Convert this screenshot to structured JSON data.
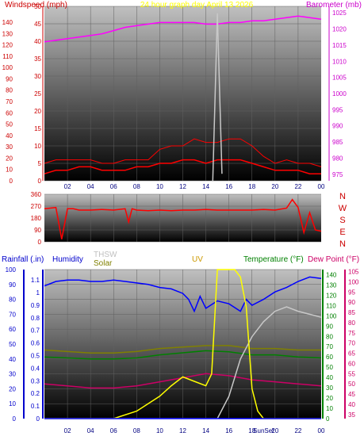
{
  "colors": {
    "wind_speed": "#ff0000",
    "gust": "#ff0000",
    "barometer": "#ff00ff",
    "wind_dir": "#ff0000",
    "rain": "#0000ff",
    "humidity": "#0000ff",
    "thsw": "#c8c8c8",
    "solar": "#808000",
    "uv": "#ffff00",
    "temperature": "#008000",
    "dew_point": "#cc0066",
    "title": "#ffff00",
    "axis_left_speed": "#cc0000",
    "axis_right_baro": "#cc00cc",
    "axis_rain": "#0000cc",
    "axis_uv": "#ffcc00",
    "axis_temp": "#008000",
    "axis_dew": "#cc0066"
  },
  "chart_data": [
    {
      "type": "line",
      "title": "24 hour graph day   April 13 2026",
      "ylabel_left": "Windspeed (mph)",
      "ylabel_right": "Barometer (mb)",
      "y_left_ticks_mph": [
        0,
        5,
        10,
        15,
        20,
        25,
        30,
        35,
        40,
        45,
        50
      ],
      "y_left_ticks_kmh": [
        0,
        10,
        20,
        30,
        40,
        50,
        60,
        70,
        80,
        90,
        100,
        110,
        120,
        130,
        140
      ],
      "ylim_left": [
        0,
        50
      ],
      "y_right_ticks": [
        975,
        980,
        985,
        990,
        995,
        1000,
        1005,
        1010,
        1015,
        1020,
        1025
      ],
      "ylim_right": [
        973,
        1027
      ],
      "x_ticks": [
        "02",
        "04",
        "06",
        "08",
        "10",
        "12",
        "14",
        "16",
        "18",
        "20",
        "22",
        "00"
      ],
      "xlim": [
        0,
        24
      ],
      "series": [
        {
          "name": "Barometer",
          "axis": "right",
          "x": [
            0,
            1,
            2,
            3,
            4,
            5,
            6,
            7,
            8,
            9,
            10,
            11,
            12,
            13,
            14,
            15,
            16,
            17,
            18,
            19,
            20,
            21,
            22,
            23,
            24
          ],
          "values": [
            1016,
            1016.5,
            1017,
            1017.5,
            1018,
            1018.5,
            1019.5,
            1020.5,
            1021,
            1021.5,
            1022,
            1022,
            1022,
            1022,
            1021.5,
            1021.5,
            1022,
            1022,
            1022.5,
            1022.5,
            1023,
            1023.5,
            1024,
            1023.5,
            1023
          ]
        },
        {
          "name": "Wind Speed",
          "axis": "left",
          "x": [
            0,
            1,
            2,
            3,
            4,
            5,
            6,
            7,
            8,
            9,
            10,
            11,
            12,
            13,
            14,
            15,
            16,
            17,
            18,
            19,
            20,
            21,
            22,
            23,
            24
          ],
          "values": [
            2,
            3,
            3,
            4,
            4,
            3,
            3,
            3,
            4,
            4,
            5,
            5,
            6,
            6,
            5,
            6,
            6,
            6,
            5,
            4,
            3,
            3,
            3,
            2,
            2
          ]
        },
        {
          "name": "Gust",
          "axis": "left",
          "x": [
            0,
            1,
            2,
            3,
            4,
            5,
            6,
            7,
            8,
            9,
            10,
            11,
            12,
            13,
            14,
            15,
            16,
            17,
            18,
            19,
            20,
            21,
            22,
            23,
            24
          ],
          "values": [
            5,
            6,
            6,
            6,
            6,
            5,
            5,
            6,
            6,
            6,
            9,
            10,
            10,
            12,
            11,
            11,
            12,
            12,
            10,
            7,
            5,
            6,
            5,
            5,
            4
          ]
        },
        {
          "name": "",
          "axis": "left",
          "x": [
            14.6,
            15.0,
            15.4
          ],
          "values": [
            0,
            48,
            2
          ]
        }
      ]
    },
    {
      "type": "line",
      "ylabel_right": "Direction",
      "y_ticks": [
        0,
        90,
        180,
        270,
        360
      ],
      "ylim": [
        0,
        360
      ],
      "compass": [
        "N",
        "W",
        "S",
        "E",
        "N"
      ],
      "x_ticks": [
        "02",
        "04",
        "06",
        "08",
        "10",
        "12",
        "14",
        "16",
        "18",
        "20",
        "22",
        "00"
      ],
      "xlim": [
        0,
        24
      ],
      "series": [
        {
          "name": "Wind Direction",
          "x": [
            0,
            0.5,
            1,
            1.5,
            2,
            2.5,
            3,
            4,
            5,
            6,
            7,
            7.3,
            7.6,
            8,
            9,
            10,
            11,
            12,
            13,
            14,
            15,
            16,
            17,
            18,
            19,
            20,
            21,
            21.5,
            22,
            22.5,
            23,
            23.5,
            24
          ],
          "values": [
            250,
            255,
            260,
            20,
            250,
            250,
            240,
            240,
            245,
            240,
            250,
            150,
            250,
            240,
            235,
            240,
            235,
            240,
            240,
            245,
            240,
            240,
            240,
            240,
            245,
            240,
            255,
            320,
            260,
            70,
            220,
            90,
            80
          ]
        }
      ]
    },
    {
      "type": "line",
      "labels": {
        "rain": "Rainfall (.in)",
        "humidity": "Humidity",
        "thsw": "THSW",
        "solar": "Solar",
        "uv": "UV",
        "temperature": "Temperature (°F)",
        "dew_point": "Dew Point (°F)"
      },
      "y_rain_ticks": [
        0,
        0.1,
        0.2,
        0.3,
        0.4,
        0.5,
        0.6,
        0.7,
        0.8,
        0.9,
        1,
        1.1
      ],
      "y_humidity_ticks": [
        0,
        10,
        20,
        30,
        40,
        50,
        60,
        70,
        80,
        90,
        100
      ],
      "y_temp_ticks": [
        0,
        10,
        20,
        30,
        40,
        50,
        60,
        70,
        80,
        90,
        100,
        110,
        120,
        130,
        140
      ],
      "y_dew_ticks": [
        35,
        40,
        45,
        50,
        55,
        60,
        65,
        70,
        75,
        80,
        85,
        90,
        95,
        100,
        105
      ],
      "x_ticks": [
        "02",
        "04",
        "06",
        "08",
        "10",
        "12",
        "14",
        "16",
        "18",
        "20",
        "22",
        "00"
      ],
      "annotations": [
        "SunSet"
      ],
      "xlim": [
        0,
        24
      ],
      "series": [
        {
          "name": "Humidity",
          "axis": "humidity",
          "x": [
            0,
            1,
            2,
            3,
            4,
            5,
            6,
            7,
            8,
            9,
            10,
            11,
            12,
            12.5,
            13,
            13.5,
            14,
            15,
            16,
            17,
            17.5,
            18,
            19,
            20,
            21,
            22,
            23,
            24
          ],
          "values": [
            89,
            92,
            93,
            93,
            92,
            92,
            93,
            92,
            91,
            90,
            88,
            87,
            84,
            80,
            72,
            82,
            74,
            79,
            77,
            72,
            80,
            76,
            80,
            85,
            88,
            92,
            95,
            94
          ]
        },
        {
          "name": "Temperature",
          "axis": "temp",
          "x": [
            0,
            2,
            4,
            6,
            8,
            10,
            12,
            14,
            16,
            18,
            20,
            22,
            24
          ],
          "values": [
            60,
            59,
            58,
            58,
            59,
            62,
            64,
            66,
            65,
            62,
            62,
            60,
            59
          ]
        },
        {
          "name": "Dew Point",
          "axis": "dew",
          "x": [
            0,
            2,
            4,
            6,
            8,
            10,
            12,
            14,
            16,
            18,
            20,
            22,
            24
          ],
          "values": [
            50,
            49,
            48,
            48,
            49,
            51,
            53,
            55,
            54,
            52,
            51,
            50,
            49
          ]
        },
        {
          "name": "Solar",
          "axis": "humidity",
          "x": [
            0,
            2,
            4,
            6,
            8,
            10,
            12,
            14,
            16,
            18,
            20,
            22,
            24
          ],
          "values": [
            46,
            45,
            44,
            44,
            45,
            47,
            48,
            49,
            49,
            47,
            47,
            46,
            46
          ]
        },
        {
          "name": "THSW",
          "axis": "humidity",
          "x": [
            0,
            15,
            16,
            17,
            18,
            19,
            20,
            21,
            22,
            23,
            24
          ],
          "values": [
            0,
            0,
            15,
            40,
            55,
            65,
            72,
            75,
            72,
            70,
            68
          ]
        },
        {
          "name": "UV",
          "axis": "humidity",
          "x": [
            0,
            6,
            8,
            10,
            11,
            12,
            13,
            14,
            14.5,
            15,
            15.5,
            16,
            16.5,
            17,
            17.5,
            18,
            18.5,
            19,
            24
          ],
          "values": [
            0,
            0,
            5,
            15,
            22,
            28,
            25,
            22,
            30,
            100,
            100,
            100,
            100,
            95,
            75,
            20,
            5,
            0,
            0
          ]
        },
        {
          "name": "Rainfall",
          "axis": "humidity",
          "x": [
            0,
            24
          ],
          "values": [
            0,
            0
          ]
        }
      ]
    }
  ]
}
